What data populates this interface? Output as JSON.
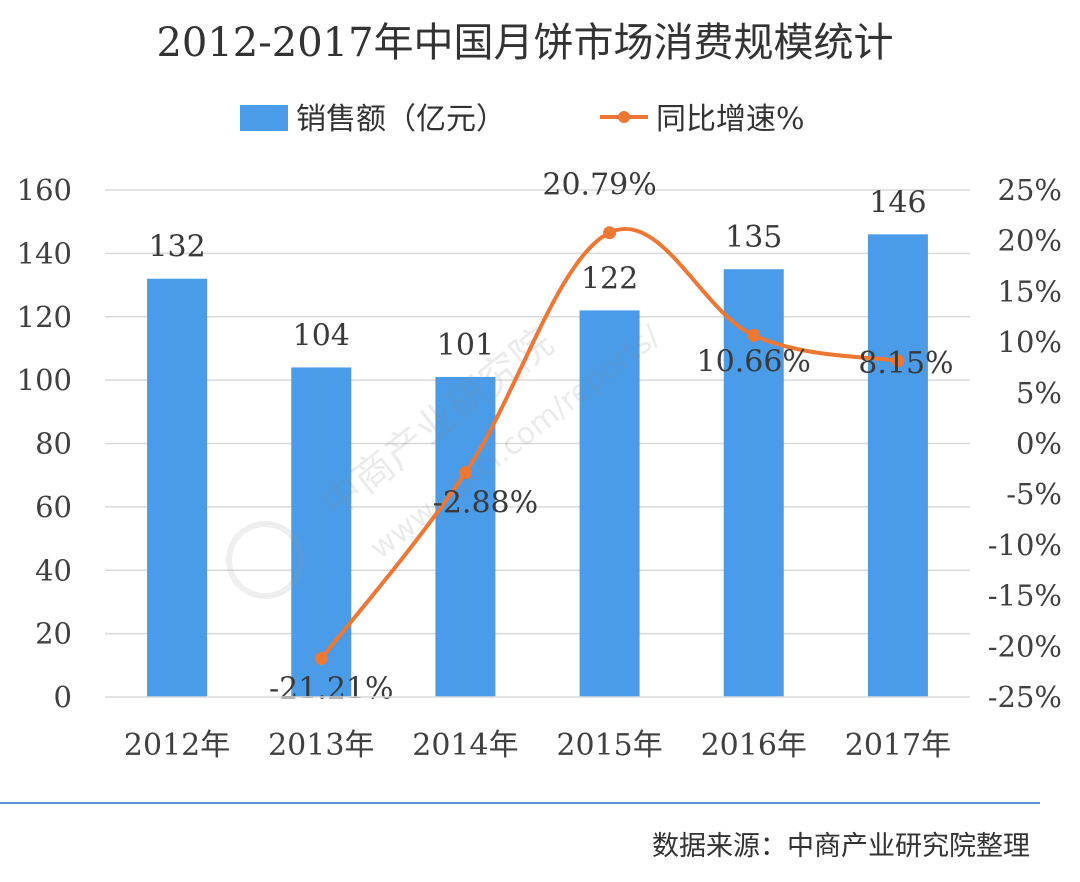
{
  "chart_data": {
    "type": "bar+line",
    "title": "2012-2017年中国月饼市场消费规模统计",
    "categories": [
      "2012年",
      "2013年",
      "2014年",
      "2015年",
      "2016年",
      "2017年"
    ],
    "series": [
      {
        "name": "销售额（亿元）",
        "type": "bar",
        "axis": "left",
        "values": [
          132,
          104,
          101,
          122,
          135,
          146
        ],
        "labels": [
          "132",
          "104",
          "101",
          "122",
          "135",
          "146"
        ]
      },
      {
        "name": "同比增速%",
        "type": "line",
        "axis": "right",
        "values": [
          null,
          -21.21,
          -2.88,
          20.79,
          10.66,
          8.15
        ],
        "labels": [
          "",
          "-21.21%",
          "-2.88%",
          "20.79%",
          "10.66%",
          "8.15%"
        ]
      }
    ],
    "left_axis": {
      "min": 0,
      "max": 160,
      "ticks": [
        "0",
        "20",
        "40",
        "60",
        "80",
        "100",
        "120",
        "140",
        "160"
      ]
    },
    "right_axis": {
      "min": -25,
      "max": 25,
      "ticks": [
        "-25%",
        "-20%",
        "-15%",
        "-10%",
        "-5%",
        "0%",
        "5%",
        "10%",
        "15%",
        "20%",
        "25%"
      ]
    },
    "grid": true,
    "legend_position": "top-center",
    "colors": {
      "bar": "#4a9ce8",
      "line": "#ee7733",
      "grid": "#d9d9d9",
      "divider": "#5b8fd6"
    }
  },
  "source": "数据来源：中商产业研究院整理",
  "watermark": {
    "brand": "中商产业研究院",
    "url": "www.askci.com/reports/"
  }
}
